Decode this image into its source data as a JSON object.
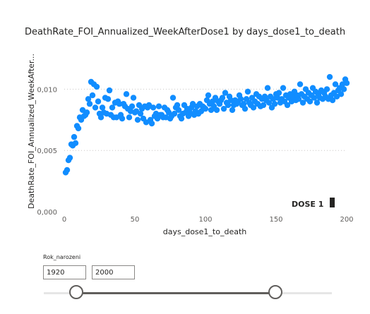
{
  "slicer": {
    "title": "Rok_narozeni",
    "min_value": "1920",
    "max_value": "2000",
    "selected_range": [
      1920,
      2000
    ]
  },
  "annotation": {
    "label": "DOSE 1"
  },
  "colors": {
    "series": "#118dff",
    "axis_text": "#605e5c",
    "grid": "#c8c6c4",
    "slider": "#605e5c"
  },
  "chart_data": {
    "type": "scatter",
    "title": "DeathRate_FOI_Annualized_WeekAfterDose1 by days_dose1_to_death",
    "xlabel": "days_dose1_to_death",
    "ylabel": "DeathRate_FOI_Annualized_WeekAfter...",
    "xlim": [
      0,
      200
    ],
    "ylim": [
      0,
      0.0125
    ],
    "xticks": [
      0,
      50,
      100,
      150,
      200
    ],
    "xtick_labels": [
      "0",
      "50",
      "100",
      "150",
      "200"
    ],
    "yticks": [
      0,
      0.005,
      0.01
    ],
    "ytick_labels": [
      "0,000",
      "0,005",
      "0,010"
    ],
    "grid": "horizontal dotted",
    "series": [
      {
        "points": [
          [
            1,
            0.0032
          ],
          [
            2,
            0.0034
          ],
          [
            3,
            0.0042
          ],
          [
            4,
            0.0044
          ],
          [
            5,
            0.0055
          ],
          [
            6,
            0.0054
          ],
          [
            7,
            0.0061
          ],
          [
            8,
            0.0056
          ],
          [
            9,
            0.007
          ],
          [
            10,
            0.0068
          ],
          [
            11,
            0.0077
          ],
          [
            12,
            0.0075
          ],
          [
            13,
            0.0083
          ],
          [
            14,
            0.0078
          ],
          [
            15,
            0.0079
          ],
          [
            16,
            0.0081
          ],
          [
            17,
            0.0092
          ],
          [
            18,
            0.0088
          ],
          [
            19,
            0.0106
          ],
          [
            20,
            0.0095
          ],
          [
            21,
            0.0104
          ],
          [
            22,
            0.0085
          ],
          [
            23,
            0.0102
          ],
          [
            24,
            0.009
          ],
          [
            25,
            0.008
          ],
          [
            26,
            0.0077
          ],
          [
            27,
            0.0085
          ],
          [
            28,
            0.0081
          ],
          [
            29,
            0.0093
          ],
          [
            30,
            0.008
          ],
          [
            31,
            0.0092
          ],
          [
            32,
            0.0099
          ],
          [
            33,
            0.0079
          ],
          [
            34,
            0.0085
          ],
          [
            35,
            0.0077
          ],
          [
            36,
            0.0089
          ],
          [
            37,
            0.0077
          ],
          [
            38,
            0.009
          ],
          [
            39,
            0.0088
          ],
          [
            40,
            0.0079
          ],
          [
            41,
            0.0076
          ],
          [
            42,
            0.0088
          ],
          [
            43,
            0.0086
          ],
          [
            44,
            0.0096
          ],
          [
            45,
            0.0084
          ],
          [
            46,
            0.0077
          ],
          [
            47,
            0.0082
          ],
          [
            48,
            0.0086
          ],
          [
            49,
            0.0093
          ],
          [
            50,
            0.0081
          ],
          [
            51,
            0.0082
          ],
          [
            52,
            0.0075
          ],
          [
            53,
            0.0087
          ],
          [
            54,
            0.008
          ],
          [
            55,
            0.0084
          ],
          [
            56,
            0.0076
          ],
          [
            57,
            0.0086
          ],
          [
            58,
            0.0073
          ],
          [
            59,
            0.0085
          ],
          [
            60,
            0.0087
          ],
          [
            61,
            0.0075
          ],
          [
            62,
            0.0072
          ],
          [
            63,
            0.0085
          ],
          [
            64,
            0.0078
          ],
          [
            65,
            0.008
          ],
          [
            66,
            0.0076
          ],
          [
            67,
            0.0086
          ],
          [
            68,
            0.0079
          ],
          [
            69,
            0.0079
          ],
          [
            70,
            0.0077
          ],
          [
            71,
            0.0085
          ],
          [
            72,
            0.0077
          ],
          [
            73,
            0.0083
          ],
          [
            74,
            0.0081
          ],
          [
            75,
            0.0076
          ],
          [
            76,
            0.0078
          ],
          [
            77,
            0.0093
          ],
          [
            78,
            0.008
          ],
          [
            79,
            0.0085
          ],
          [
            80,
            0.0087
          ],
          [
            81,
            0.0083
          ],
          [
            82,
            0.0078
          ],
          [
            83,
            0.0076
          ],
          [
            84,
            0.008
          ],
          [
            85,
            0.0087
          ],
          [
            86,
            0.0081
          ],
          [
            87,
            0.0084
          ],
          [
            88,
            0.0078
          ],
          [
            89,
            0.0081
          ],
          [
            90,
            0.0085
          ],
          [
            91,
            0.0088
          ],
          [
            92,
            0.0079
          ],
          [
            93,
            0.0082
          ],
          [
            94,
            0.0086
          ],
          [
            95,
            0.008
          ],
          [
            96,
            0.0088
          ],
          [
            97,
            0.0082
          ],
          [
            98,
            0.0086
          ],
          [
            99,
            0.0085
          ],
          [
            100,
            0.0084
          ],
          [
            101,
            0.0091
          ],
          [
            102,
            0.0095
          ],
          [
            103,
            0.0088
          ],
          [
            104,
            0.0083
          ],
          [
            105,
            0.009
          ],
          [
            106,
            0.0086
          ],
          [
            107,
            0.0093
          ],
          [
            108,
            0.0083
          ],
          [
            109,
            0.009
          ],
          [
            110,
            0.0088
          ],
          [
            111,
            0.0091
          ],
          [
            112,
            0.0093
          ],
          [
            113,
            0.0084
          ],
          [
            114,
            0.0097
          ],
          [
            115,
            0.0089
          ],
          [
            116,
            0.0087
          ],
          [
            117,
            0.0094
          ],
          [
            118,
            0.0091
          ],
          [
            119,
            0.0083
          ],
          [
            120,
            0.0087
          ],
          [
            121,
            0.0091
          ],
          [
            122,
            0.0088
          ],
          [
            123,
            0.009
          ],
          [
            124,
            0.0095
          ],
          [
            125,
            0.0092
          ],
          [
            126,
            0.0087
          ],
          [
            127,
            0.0088
          ],
          [
            128,
            0.0084
          ],
          [
            129,
            0.0092
          ],
          [
            130,
            0.0098
          ],
          [
            131,
            0.0089
          ],
          [
            132,
            0.0087
          ],
          [
            133,
            0.0093
          ],
          [
            134,
            0.0085
          ],
          [
            135,
            0.009
          ],
          [
            136,
            0.0096
          ],
          [
            137,
            0.0088
          ],
          [
            138,
            0.0094
          ],
          [
            139,
            0.0086
          ],
          [
            140,
            0.0092
          ],
          [
            141,
            0.0087
          ],
          [
            142,
            0.0094
          ],
          [
            143,
            0.0091
          ],
          [
            144,
            0.0101
          ],
          [
            145,
            0.0089
          ],
          [
            146,
            0.0094
          ],
          [
            147,
            0.0085
          ],
          [
            148,
            0.0092
          ],
          [
            149,
            0.0088
          ],
          [
            150,
            0.0096
          ],
          [
            151,
            0.0093
          ],
          [
            152,
            0.0097
          ],
          [
            153,
            0.0089
          ],
          [
            154,
            0.0092
          ],
          [
            155,
            0.0101
          ],
          [
            156,
            0.009
          ],
          [
            157,
            0.0095
          ],
          [
            158,
            0.0087
          ],
          [
            159,
            0.0093
          ],
          [
            160,
            0.0096
          ],
          [
            161,
            0.009
          ],
          [
            162,
            0.0094
          ],
          [
            163,
            0.0098
          ],
          [
            164,
            0.0091
          ],
          [
            165,
            0.0095
          ],
          [
            166,
            0.0092
          ],
          [
            167,
            0.0104
          ],
          [
            168,
            0.0096
          ],
          [
            169,
            0.0089
          ],
          [
            170,
            0.0094
          ],
          [
            171,
            0.01
          ],
          [
            172,
            0.0092
          ],
          [
            173,
            0.0097
          ],
          [
            174,
            0.009
          ],
          [
            175,
            0.0095
          ],
          [
            176,
            0.0101
          ],
          [
            177,
            0.0093
          ],
          [
            178,
            0.0098
          ],
          [
            179,
            0.0089
          ],
          [
            180,
            0.0096
          ],
          [
            181,
            0.0093
          ],
          [
            182,
            0.0099
          ],
          [
            183,
            0.0092
          ],
          [
            184,
            0.0097
          ],
          [
            185,
            0.0094
          ],
          [
            186,
            0.01
          ],
          [
            187,
            0.0092
          ],
          [
            188,
            0.011
          ],
          [
            189,
            0.0095
          ],
          [
            190,
            0.0091
          ],
          [
            191,
            0.0097
          ],
          [
            192,
            0.0104
          ],
          [
            193,
            0.0094
          ],
          [
            194,
            0.0099
          ],
          [
            195,
            0.0101
          ],
          [
            196,
            0.0096
          ],
          [
            197,
            0.0104
          ],
          [
            198,
            0.01
          ],
          [
            199,
            0.0108
          ],
          [
            200,
            0.0105
          ]
        ]
      }
    ]
  }
}
